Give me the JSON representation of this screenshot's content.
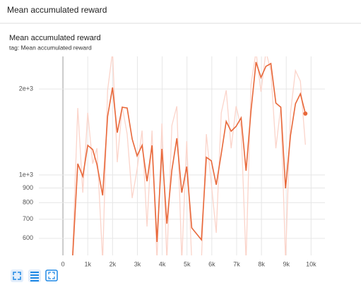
{
  "header": {
    "title": "Mean accumulated reward"
  },
  "chart_data": {
    "type": "line",
    "title": "Mean accumulated reward",
    "subtitle": "tag: Mean accumulated reward",
    "log_y": true,
    "grid": true,
    "x": [
      370,
      600,
      800,
      1000,
      1200,
      1370,
      1600,
      1800,
      2000,
      2190,
      2390,
      2590,
      2790,
      2990,
      3190,
      3390,
      3590,
      3790,
      3990,
      4190,
      4390,
      4590,
      4790,
      4990,
      5190,
      5580,
      5780,
      5980,
      6180,
      6380,
      6580,
      6780,
      6980,
      7180,
      7380,
      7580,
      7780,
      7980,
      8180,
      8380,
      8580,
      8780,
      8970,
      9170,
      9370,
      9570,
      9770
    ],
    "series": [
      {
        "color": "#fbd4ca",
        "values": [
          480,
          1716,
          867,
          1650,
          1095,
          1240,
          500,
          1980,
          2700,
          1108,
          1740,
          1390,
          830,
          1047,
          1430,
          660,
          1430,
          500,
          1513,
          500,
          1490,
          1740,
          500,
          1313,
          500,
          500,
          1390,
          934,
          627,
          1650,
          1980,
          1240,
          1740,
          1470,
          500,
          2070,
          2700,
          1956,
          2700,
          2320,
          1240,
          1740,
          500,
          1650,
          2320,
          2130,
          1276
        ]
      },
      {
        "color": "#e8683a",
        "values": [
          480,
          1095,
          989,
          1270,
          1227,
          1089,
          848,
          1603,
          2024,
          1406,
          1726,
          1716,
          1336,
          1166,
          1270,
          950,
          1270,
          583,
          1234,
          675,
          1040,
          1344,
          867,
          1070,
          653,
          593,
          1153,
          1121,
          924,
          1186,
          1540,
          1423,
          1480,
          1585,
          1035,
          1677,
          2484,
          2193,
          2400,
          2455,
          1785,
          1726,
          898,
          1375,
          1775,
          1924,
          1640
        ]
      }
    ],
    "xlim": [
      -970,
      10560
    ],
    "xticks": [
      0,
      {
        "value": 1000,
        "label": "1k"
      },
      {
        "value": 2000,
        "label": "2k"
      },
      {
        "value": 3000,
        "label": "3k"
      },
      {
        "value": 4000,
        "label": "4k"
      },
      {
        "value": 5000,
        "label": "5k"
      },
      {
        "value": 6000,
        "label": "6k"
      },
      {
        "value": 7000,
        "label": "7k"
      },
      {
        "value": 8000,
        "label": "8k"
      },
      {
        "value": 9000,
        "label": "9k"
      },
      {
        "value": 10000,
        "label": "10k"
      }
    ],
    "ylim": [
      523,
      2600
    ],
    "yticks": [
      600,
      700,
      800,
      900,
      {
        "value": 1000,
        "label": "1e+3"
      },
      {
        "value": 2000,
        "label": "2e+3"
      }
    ]
  }
}
